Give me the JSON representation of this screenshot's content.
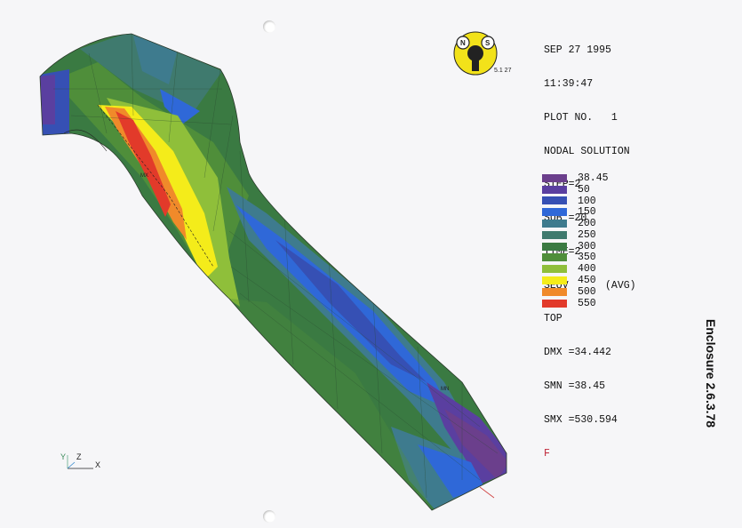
{
  "header": {
    "date": "SEP 27 1995",
    "time": "11:39:47",
    "plot_no": "PLOT NO.   1",
    "solution": "NODAL SOLUTION",
    "step": "STEP=2",
    "sub": "SUB =20",
    "time_val": "TIME=2",
    "seqv": "SEQV      (AVG)",
    "view": "TOP",
    "dmx": "DMX =34.442",
    "smn": "SMN =38.45",
    "smx": "SMX =530.594",
    "units": "F"
  },
  "logo": {
    "version": "5.1  27"
  },
  "legend": [
    {
      "label": "38.45",
      "color": "#6b3f8c"
    },
    {
      "label": "50",
      "color": "#5a3fa0"
    },
    {
      "label": "100",
      "color": "#3650b4"
    },
    {
      "label": "150",
      "color": "#2f68d8"
    },
    {
      "label": "200",
      "color": "#3e7b8e"
    },
    {
      "label": "250",
      "color": "#3f7a6e"
    },
    {
      "label": "300",
      "color": "#3b7a42"
    },
    {
      "label": "350",
      "color": "#4f8e3a"
    },
    {
      "label": "400",
      "color": "#8fbf3a"
    },
    {
      "label": "450",
      "color": "#f4ec1a"
    },
    {
      "label": "500",
      "color": "#f08a2a"
    },
    {
      "label": "550",
      "color": "#e23a2a"
    }
  ],
  "markers": {
    "mx": "MX",
    "mn": "MN"
  },
  "axis": {
    "y": "Y",
    "z": "Z",
    "x": "X"
  },
  "enclosure": "Enclosure 2.6.3.78"
}
